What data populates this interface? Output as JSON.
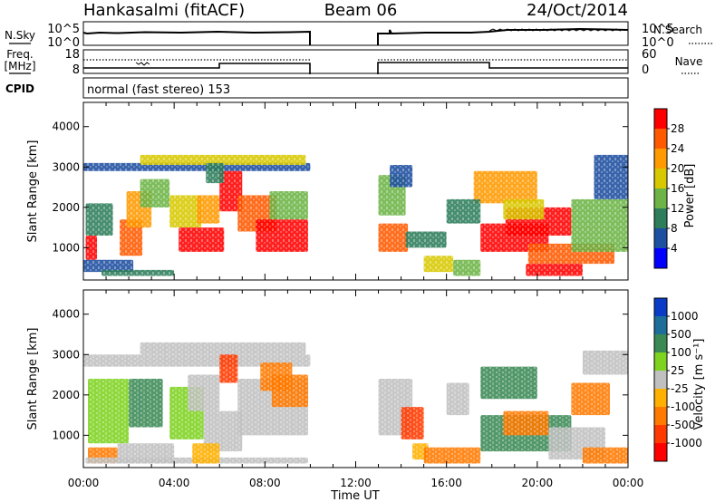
{
  "header": {
    "radar": "Hankasalmi (fitACF)",
    "beam": "Beam 06",
    "date": "24/Oct/2014"
  },
  "noise_panel": {
    "left_label": "N.Sky",
    "right_label": "N.Search",
    "left_ticks": [
      "10^5",
      "10^0"
    ],
    "right_ticks": [
      "10^5",
      "10^0"
    ]
  },
  "freq_panel": {
    "left_label_1": "Freq.",
    "left_label_2": "[MHz]",
    "right_label": "Nave",
    "left_ticks": [
      "18",
      "8"
    ],
    "right_ticks": [
      "60",
      "0"
    ]
  },
  "cpid": {
    "label": "CPID",
    "text": "normal (fast stereo) 153"
  },
  "x_axis": {
    "label": "Time UT",
    "ticks": [
      "00:00",
      "04:00",
      "08:00",
      "12:00",
      "16:00",
      "20:00",
      "00:00"
    ]
  },
  "chart_data": [
    {
      "type": "heatmap",
      "title": "Power",
      "ylabel": "Slant Range [km]",
      "yticks": [
        "4000",
        "3000",
        "2000",
        "1000"
      ],
      "ylim": [
        200,
        4600
      ],
      "xlim": [
        0,
        24
      ],
      "data_gap_hours": [
        10,
        13
      ],
      "colorbar_label": "Power [dB]",
      "colorbar_ticks": [
        "28",
        "24",
        "20",
        "16",
        "12",
        "8",
        "4"
      ],
      "colorbar_colors": [
        "#ff0000",
        "#ff5a00",
        "#ff9a00",
        "#d8c800",
        "#6cb445",
        "#2e7d5b",
        "#1e4fa0",
        "#0000ff"
      ]
    },
    {
      "type": "heatmap",
      "title": "Velocity",
      "ylabel": "Slant Range [km]",
      "yticks": [
        "4000",
        "3000",
        "2000",
        "1000"
      ],
      "ylim": [
        200,
        4600
      ],
      "xlim": [
        0,
        24
      ],
      "data_gap_hours": [
        10,
        13
      ],
      "colorbar_label": "Velocity [m s⁻¹]",
      "colorbar_ticks": [
        "1000",
        "500",
        "100",
        "25",
        "-25",
        "-100",
        "-500",
        "-1000"
      ],
      "colorbar_colors": [
        "#0a3cc8",
        "#1e6e9a",
        "#3b8a55",
        "#7ed321",
        "#c0c0c0",
        "#ffb000",
        "#ff7a00",
        "#ff3a00",
        "#ff0000"
      ]
    }
  ]
}
